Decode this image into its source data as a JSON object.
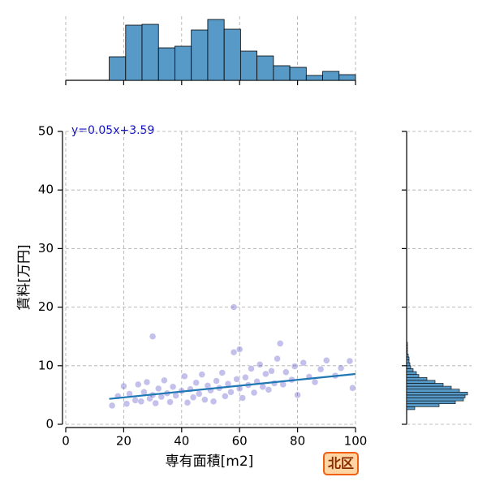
{
  "chart_data": [
    {
      "type": "scatter",
      "annotation": "y=0.05x+3.59",
      "xlabel": "専有面積[m2]",
      "ylabel": "賃料[万円]",
      "badge": "北区",
      "color": "#3a2fc0",
      "line_color": "#1f77b4",
      "xlim": [
        0,
        100
      ],
      "xticks": [
        0,
        20,
        40,
        60,
        80,
        100
      ],
      "ylim": [
        0,
        50
      ],
      "yticks": [
        0,
        10,
        20,
        30,
        40,
        50
      ],
      "grid": true,
      "x": [
        16,
        18,
        20,
        21,
        22,
        24,
        25,
        26,
        27,
        28,
        29,
        30,
        30,
        31,
        32,
        33,
        34,
        35,
        36,
        37,
        38,
        40,
        41,
        42,
        43,
        44,
        45,
        46,
        47,
        48,
        49,
        50,
        51,
        52,
        53,
        54,
        55,
        56,
        57,
        58,
        58,
        59,
        60,
        60,
        61,
        62,
        63,
        64,
        65,
        66,
        67,
        68,
        69,
        70,
        71,
        72,
        73,
        74,
        75,
        76,
        78,
        79,
        80,
        82,
        84,
        86,
        88,
        90,
        93,
        95,
        98,
        99
      ],
      "y": [
        3.2,
        4.8,
        6.5,
        3.5,
        5.2,
        4.1,
        6.8,
        3.9,
        5.5,
        7.2,
        4.4,
        15,
        5.0,
        3.6,
        6.1,
        4.7,
        7.5,
        5.3,
        3.8,
        6.4,
        4.9,
        5.7,
        8.2,
        3.7,
        6.0,
        4.6,
        7.1,
        5.2,
        8.5,
        4.2,
        6.6,
        5.8,
        3.9,
        7.4,
        6.2,
        8.8,
        4.8,
        6.9,
        5.5,
        20,
        12.3,
        7.7,
        12.8,
        6.1,
        4.5,
        8.0,
        6.7,
        9.5,
        5.4,
        7.3,
        10.2,
        6.4,
        8.6,
        5.9,
        9.1,
        7.0,
        11.2,
        13.8,
        6.8,
        8.9,
        7.6,
        9.9,
        5.0,
        10.5,
        8.1,
        7.2,
        9.4,
        10.9,
        8.3,
        9.6,
        10.8,
        6.2
      ],
      "fit": {
        "x": [
          15,
          100
        ],
        "y": [
          4.34,
          8.59
        ]
      }
    },
    {
      "type": "histogram",
      "color": "#5799c7",
      "bins": [
        15,
        20.67,
        26.33,
        32,
        37.67,
        43.33,
        49,
        54.67,
        60.33,
        66,
        71.67,
        77.33,
        83,
        88.67,
        94.33,
        100
      ],
      "counts": [
        29,
        68,
        69,
        40,
        42,
        62,
        75,
        63,
        36,
        30,
        18,
        16,
        6,
        11,
        7
      ],
      "ylim": [
        0,
        77
      ]
    },
    {
      "type": "histogram",
      "orientation": "horizontal",
      "color": "#5799c7",
      "bins": [
        2.5,
        3,
        3.5,
        4,
        4.5,
        5,
        5.5,
        6,
        6.5,
        7,
        7.5,
        8,
        8.5,
        9,
        9.5,
        10,
        10.5,
        11,
        11.5,
        12,
        12.5,
        13,
        13.5,
        14
      ],
      "counts": [
        10,
        40,
        60,
        70,
        72,
        75,
        65,
        55,
        45,
        35,
        25,
        15,
        12,
        8,
        5,
        4,
        3,
        3,
        2,
        1,
        1,
        1,
        1
      ],
      "xlim": [
        0,
        80
      ]
    }
  ]
}
